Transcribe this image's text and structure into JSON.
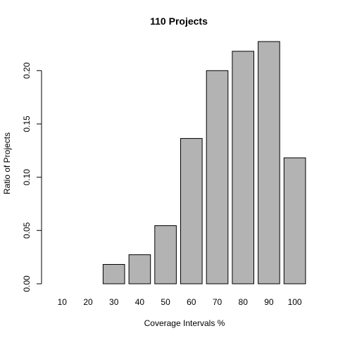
{
  "chart_data": {
    "type": "bar",
    "title": "110 Projects",
    "xlabel": "Coverage Intervals %",
    "ylabel": "Ratio of Projects",
    "categories": [
      "10",
      "20",
      "30",
      "40",
      "50",
      "60",
      "70",
      "80",
      "90",
      "100"
    ],
    "values": [
      0.0,
      0.0,
      0.0182,
      0.0273,
      0.0545,
      0.1364,
      0.2,
      0.2182,
      0.2273,
      0.1182
    ],
    "ylim": [
      0,
      0.2273
    ],
    "yticks": [
      "0.00",
      "0.05",
      "0.10",
      "0.15",
      "0.20"
    ],
    "grid": false,
    "bar_color": "#b3b3b3"
  }
}
